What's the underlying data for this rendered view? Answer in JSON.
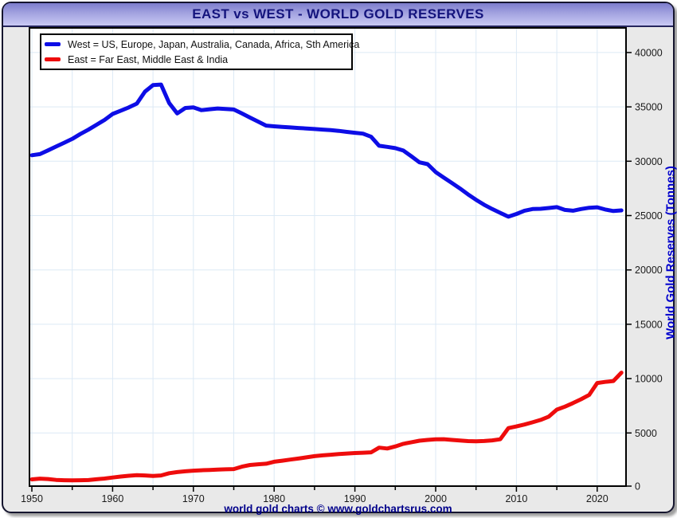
{
  "window": {
    "title": "EAST vs WEST - WORLD GOLD RESERVES"
  },
  "footer": {
    "text": "world gold charts © www.goldchartsrus.com"
  },
  "legend": {
    "items": [
      {
        "label": "West = US, Europe, Japan, Australia, Canada, Africa, Sth America",
        "color": "#0d0de6"
      },
      {
        "label": "East = Far East, Middle East & India",
        "color": "#ee0c0c"
      }
    ]
  },
  "colors": {
    "title_text": "#14147d",
    "titlebar_top": "#7d7dcc",
    "titlebar_bottom": "#c9c9f4",
    "frame_bg": "#e9e9e9",
    "plot_bg": "#ffffff",
    "grid": "#dce9f5",
    "axis": "#000000",
    "tick_label": "#1a1a1a",
    "y_axis_title": "#0000cd",
    "footer_text": "#00008b",
    "west_line": "#0d0de6",
    "east_line": "#ee0c0c"
  },
  "chart_data": {
    "type": "line",
    "title": "EAST vs WEST - WORLD GOLD RESERVES",
    "xlabel": "",
    "ylabel": "World Gold Reserves (Tonnes)",
    "xlim": [
      1949.7,
      2023.7
    ],
    "ylim": [
      0,
      42200
    ],
    "grid": "both",
    "legend_position": "top-left",
    "y_ticks": [
      0,
      5000,
      10000,
      15000,
      20000,
      25000,
      30000,
      35000,
      40000
    ],
    "x_ticks_major": [
      1950,
      1960,
      1970,
      1980,
      1990,
      2000,
      2010,
      2020
    ],
    "x_ticks_minor": [
      1955,
      1965,
      1975,
      1985,
      1995,
      2005,
      2015
    ],
    "series": [
      {
        "name": "West",
        "color": "#0d0de6",
        "start_year": 1950,
        "values": [
          30550,
          30650,
          31000,
          31350,
          31700,
          32050,
          32500,
          32900,
          33350,
          33800,
          34350,
          34650,
          34950,
          35300,
          36400,
          37000,
          37050,
          35350,
          34400,
          34900,
          34950,
          34700,
          34780,
          34850,
          34800,
          34760,
          34400,
          34020,
          33650,
          33280,
          33210,
          33160,
          33110,
          33060,
          33010,
          32960,
          32910,
          32860,
          32790,
          32700,
          32620,
          32540,
          32250,
          31420,
          31320,
          31200,
          30980,
          30450,
          29900,
          29730,
          29000,
          28500,
          28000,
          27500,
          26950,
          26450,
          26000,
          25600,
          25250,
          24900,
          25150,
          25450,
          25600,
          25620,
          25700,
          25780,
          25520,
          25450,
          25600,
          25720,
          25760,
          25560,
          25420,
          25480
        ]
      },
      {
        "name": "East",
        "color": "#ee0c0c",
        "start_year": 1950,
        "values": [
          730,
          800,
          760,
          680,
          650,
          640,
          650,
          670,
          740,
          810,
          900,
          990,
          1060,
          1120,
          1090,
          1040,
          1090,
          1300,
          1400,
          1470,
          1530,
          1570,
          1600,
          1630,
          1660,
          1680,
          1900,
          2050,
          2120,
          2170,
          2350,
          2450,
          2550,
          2650,
          2760,
          2870,
          2940,
          3000,
          3060,
          3110,
          3150,
          3180,
          3220,
          3650,
          3570,
          3760,
          4000,
          4150,
          4290,
          4360,
          4420,
          4430,
          4360,
          4300,
          4250,
          4230,
          4260,
          4320,
          4420,
          5450,
          5600,
          5780,
          5980,
          6200,
          6500,
          7150,
          7420,
          7750,
          8100,
          8500,
          9600,
          9700,
          9780,
          10550
        ]
      }
    ]
  }
}
